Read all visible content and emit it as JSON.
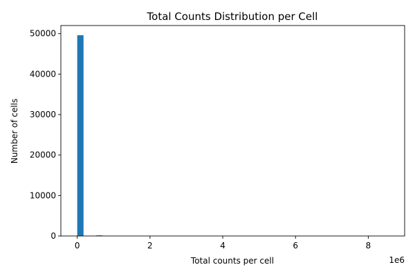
{
  "chart_data": {
    "type": "bar",
    "title": "Total Counts Distribution per Cell",
    "xlabel": "Total counts per cell",
    "ylabel": "Number of cells",
    "x_offset_label": "1e6",
    "xlim": [
      -0.45,
      9.0
    ],
    "ylim": [
      0,
      52000
    ],
    "x_ticks": [
      0,
      2,
      4,
      6,
      8
    ],
    "x_tick_labels": [
      "0",
      "2",
      "4",
      "6",
      "8"
    ],
    "y_ticks": [
      0,
      10000,
      20000,
      30000,
      40000,
      50000
    ],
    "y_tick_labels": [
      "0",
      "10000",
      "20000",
      "30000",
      "40000",
      "50000"
    ],
    "bin_width": 0.173,
    "bins": [
      {
        "x0": 0.0,
        "count": 49600
      },
      {
        "x0": 0.519,
        "count": 150
      }
    ],
    "grid": false,
    "legend": "none",
    "bar_color": "#1f77b4"
  }
}
